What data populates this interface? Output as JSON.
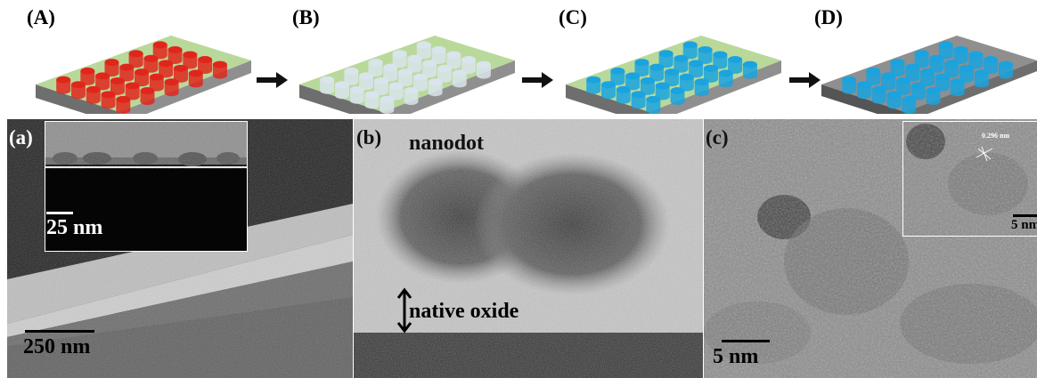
{
  "figure": {
    "schematic_labels": [
      "(A)",
      "(B)",
      "(C)",
      "(D)"
    ],
    "micrograph_labels": [
      "(a)",
      "(b)",
      "(c)"
    ],
    "panel_a": {
      "inset_scale": "25 nm",
      "main_scale": "250 nm"
    },
    "panel_b": {
      "title": "nanodot",
      "annotation": "native oxide"
    },
    "panel_c": {
      "scale": "5 nm",
      "inset_scale": "5 nm",
      "inset_annotation": "0.296 nm"
    },
    "colors": {
      "substrate_top": "#b9d99a",
      "substrate_side": "#8f8f8f",
      "dot_red": "#e0261c",
      "dot_white": "#d9e4ec",
      "dot_blue": "#1aa3df"
    }
  }
}
